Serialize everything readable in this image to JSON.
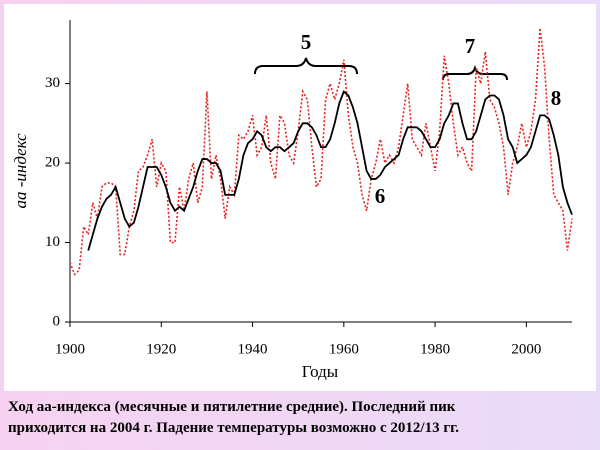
{
  "chart_data": {
    "type": "line",
    "xlabel": "Годы",
    "ylabel": "aa -индекс",
    "annotations": [
      "5",
      "6",
      "7",
      "8"
    ],
    "caption": [
      "Ход aa-индекса (месячные и пятилетние средние). Последний пик",
      "приходится на 2004 г. Падение температуры возможно с 2012/13 гг."
    ],
    "xlim": [
      1900,
      2010
    ],
    "xticks": [
      1900,
      1920,
      1940,
      1960,
      1980,
      2000
    ],
    "ylim": [
      0,
      38
    ],
    "yticks": [
      0,
      10,
      20,
      30
    ],
    "grid": false,
    "x": [
      1900,
      1901,
      1902,
      1903,
      1904,
      1905,
      1906,
      1907,
      1908,
      1909,
      1910,
      1911,
      1912,
      1913,
      1914,
      1915,
      1916,
      1917,
      1918,
      1919,
      1920,
      1921,
      1922,
      1923,
      1924,
      1925,
      1926,
      1927,
      1928,
      1929,
      1930,
      1931,
      1932,
      1933,
      1934,
      1935,
      1936,
      1937,
      1938,
      1939,
      1940,
      1941,
      1942,
      1943,
      1944,
      1945,
      1946,
      1947,
      1948,
      1949,
      1950,
      1951,
      1952,
      1953,
      1954,
      1955,
      1956,
      1957,
      1958,
      1959,
      1960,
      1961,
      1962,
      1963,
      1964,
      1965,
      1966,
      1967,
      1968,
      1969,
      1970,
      1971,
      1972,
      1973,
      1974,
      1975,
      1976,
      1977,
      1978,
      1979,
      1980,
      1981,
      1982,
      1983,
      1984,
      1985,
      1986,
      1987,
      1988,
      1989,
      1990,
      1991,
      1992,
      1993,
      1994,
      1995,
      1996,
      1997,
      1998,
      1999,
      2000,
      2001,
      2002,
      2003,
      2004,
      2005,
      2006,
      2007,
      2008,
      2009,
      2010
    ],
    "series": [
      {
        "color": "#e8211f",
        "style": "dotted",
        "values": [
          7.5,
          6,
          6.5,
          12,
          11,
          15,
          13,
          17,
          17.5,
          17.5,
          17,
          8.5,
          8.5,
          12,
          14,
          19,
          19.5,
          21,
          23,
          17,
          20,
          19,
          10,
          10,
          17,
          14,
          18,
          20,
          15,
          17,
          29,
          18,
          21,
          18,
          13,
          17,
          16,
          23.5,
          23,
          24,
          26,
          21,
          22,
          26,
          20,
          18,
          26,
          25,
          21,
          20,
          24,
          29,
          28,
          22,
          17,
          18,
          28,
          30,
          28,
          30,
          33,
          26,
          22,
          20,
          16,
          14,
          18,
          20,
          23,
          20,
          21,
          20,
          22,
          26,
          30,
          23,
          22,
          21,
          25,
          22,
          19,
          24,
          33.5,
          30,
          25,
          21,
          22,
          20,
          19,
          32,
          30,
          34,
          28,
          27,
          25,
          22,
          16,
          20,
          22,
          25,
          22,
          24,
          28,
          37,
          32,
          23,
          16,
          15,
          14,
          9,
          13
        ]
      },
      {
        "color": "#000000",
        "style": "solid",
        "values": [
          null,
          null,
          null,
          null,
          9,
          11,
          13,
          14.5,
          15.5,
          16,
          17,
          15,
          13,
          12,
          12.5,
          14.5,
          17,
          19.5,
          19.5,
          19.5,
          18.5,
          17,
          15,
          14,
          14.5,
          14,
          15.5,
          17,
          19,
          20.5,
          20.5,
          20,
          20,
          19,
          16,
          16,
          16,
          18,
          21,
          22.5,
          23,
          24,
          23.5,
          22,
          21.5,
          22,
          22,
          21.5,
          22,
          22.5,
          24,
          25,
          25,
          24.5,
          23.5,
          22,
          22,
          23,
          25,
          27.5,
          29,
          28.5,
          27,
          25,
          22,
          19,
          18,
          18,
          18.5,
          19.5,
          20,
          20.5,
          21,
          23,
          24.5,
          24.5,
          24.5,
          24,
          23,
          22,
          22,
          23,
          25,
          26,
          27.5,
          27.5,
          25,
          23,
          23,
          24,
          26,
          28,
          28.5,
          28.5,
          28,
          26,
          23,
          22,
          20,
          20.5,
          21,
          22,
          24,
          26,
          26,
          25.5,
          23.5,
          21,
          17,
          15,
          13.5
        ]
      }
    ]
  }
}
